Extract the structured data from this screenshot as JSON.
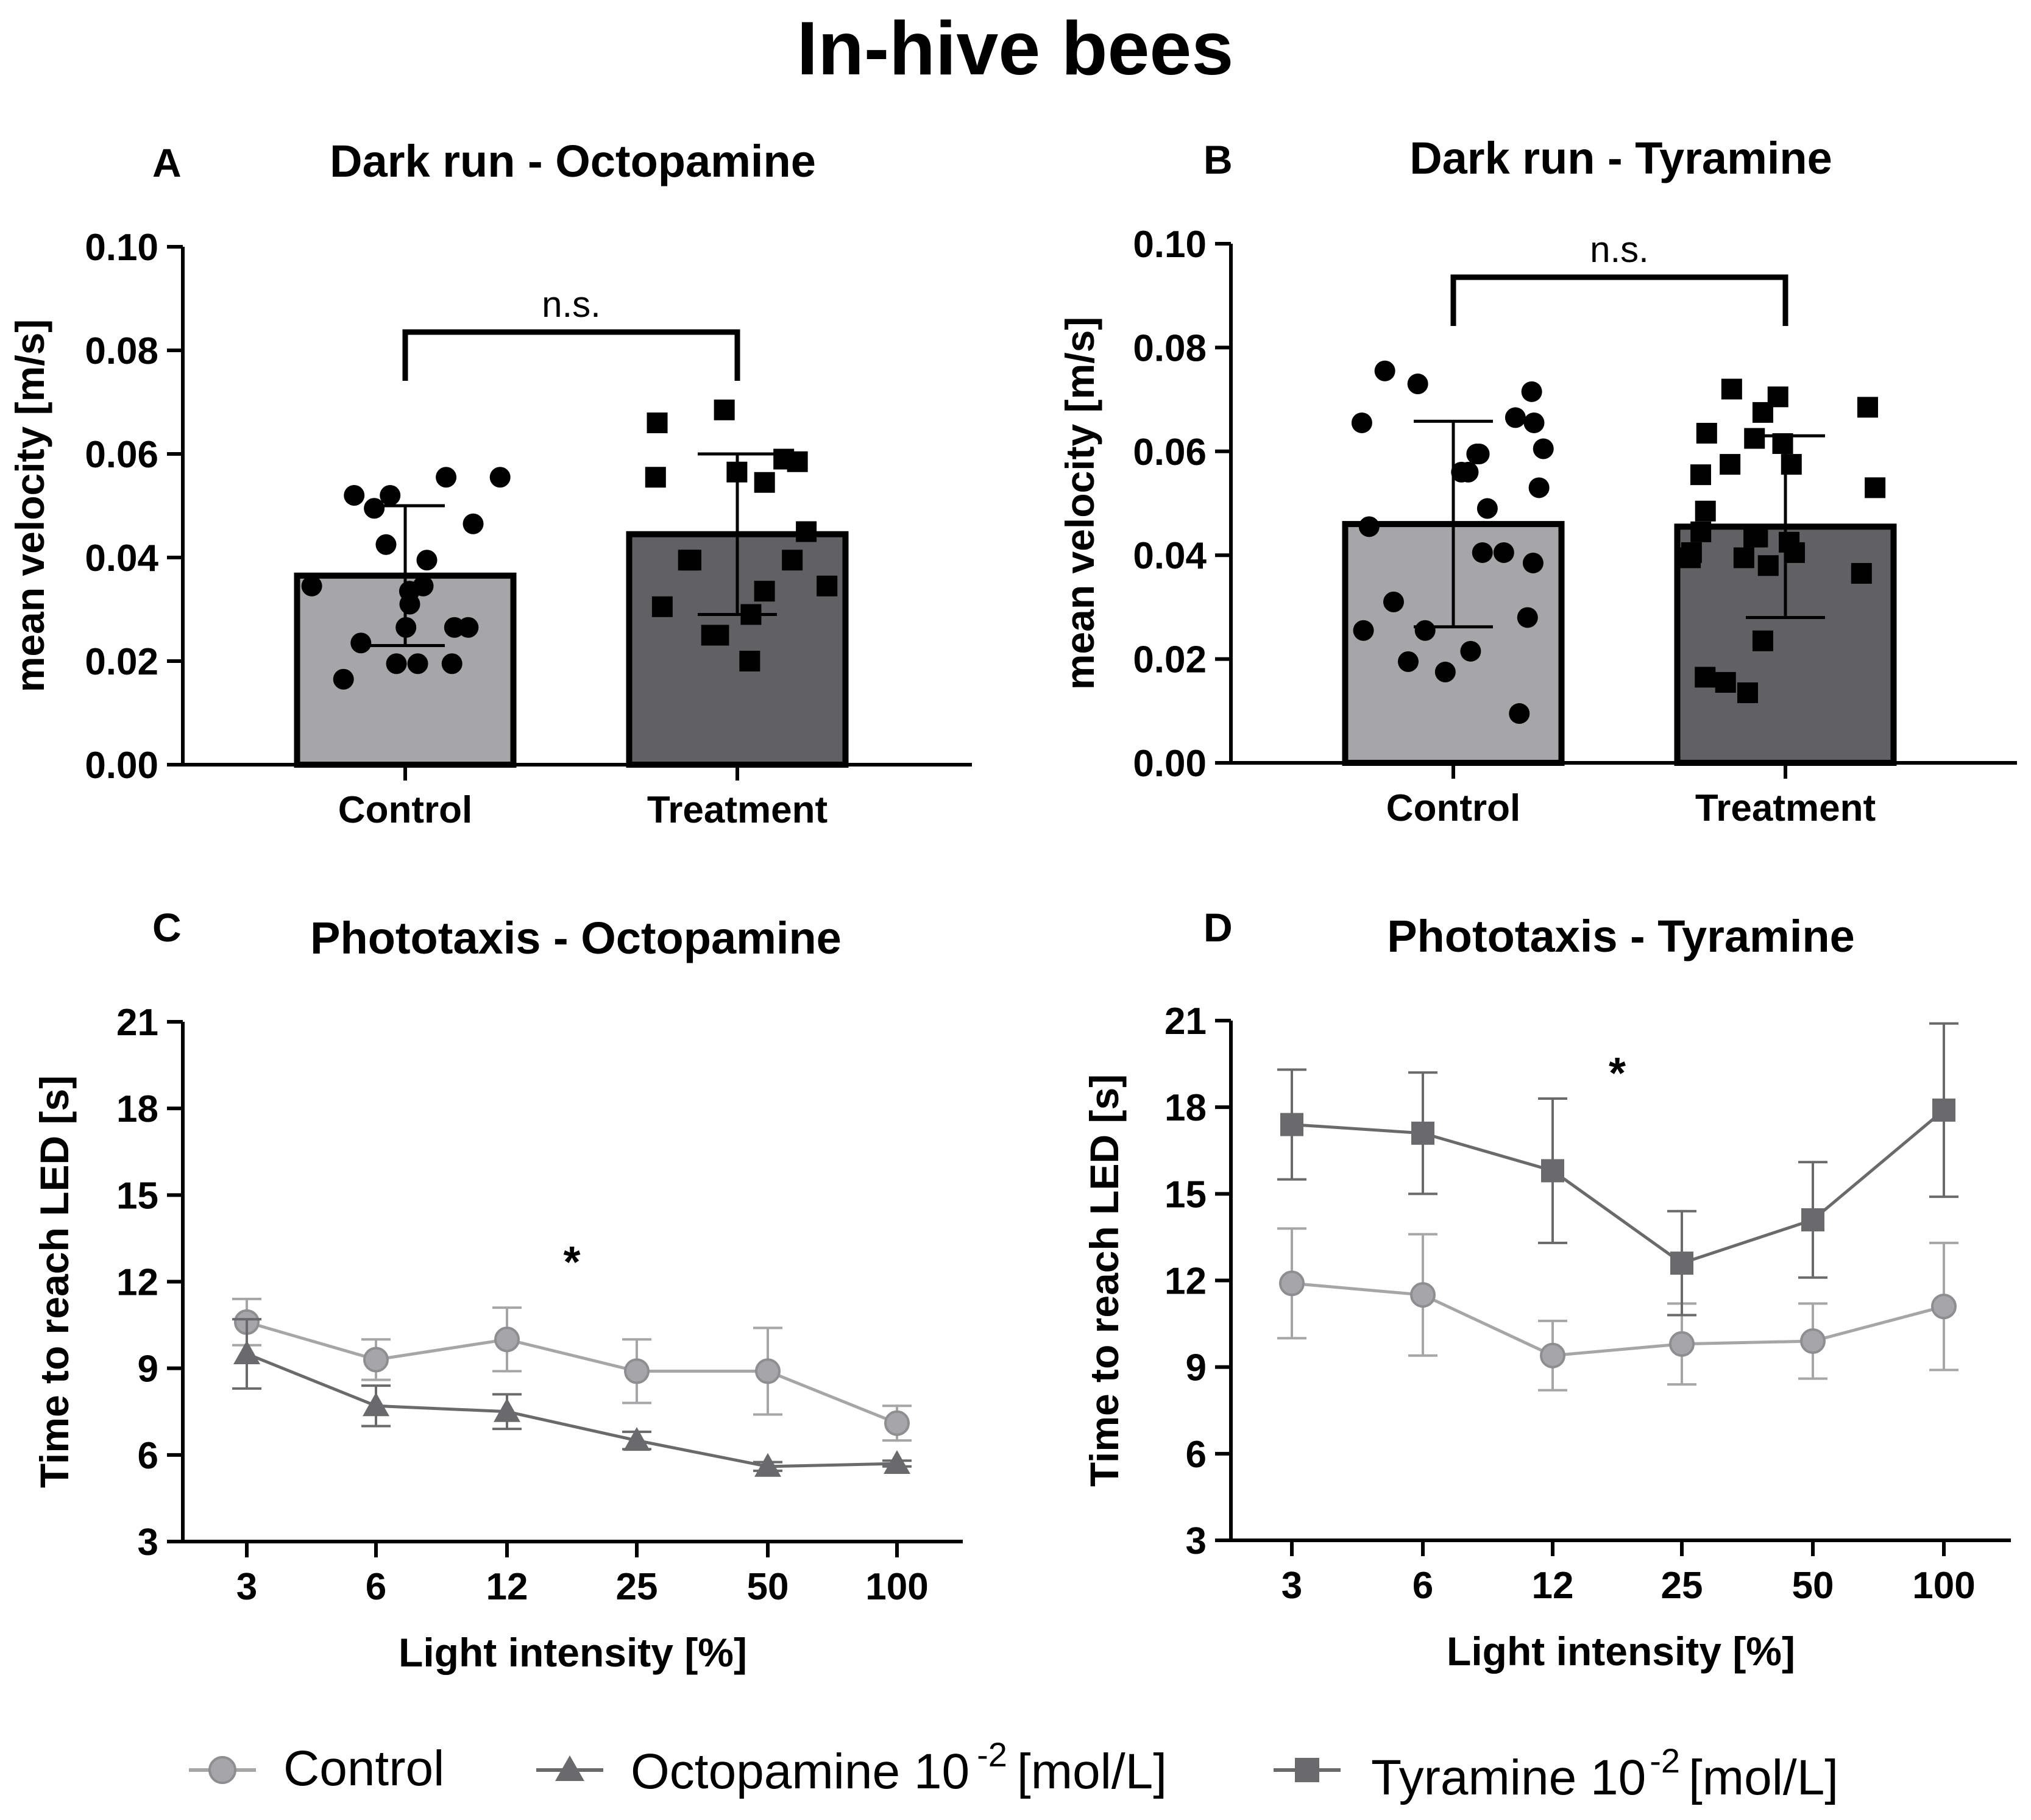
{
  "figure": {
    "title": "In-hive bees",
    "legend": [
      {
        "label": "Control",
        "marker": "circle",
        "color": "#a6a6a8"
      },
      {
        "label": "Octopamine 10",
        "sup": "-2",
        "unit": "[mol/L]",
        "marker": "triangle",
        "color": "#6a6a6c"
      },
      {
        "label": "Tyramine 10",
        "sup": "-2",
        "unit": "[mol/L]",
        "marker": "square",
        "color": "#6a6a6c"
      }
    ]
  },
  "colors": {
    "control": "#a6a6a8",
    "treatment_bar": "#616163",
    "line_dark": "#6a6a6c",
    "axis": "#000000"
  },
  "chart_data": [
    {
      "panel": "A",
      "type": "bar",
      "title": "Dark run - Octopamine",
      "ylabel": "mean velocity [m/s]",
      "xlabel": "",
      "categories": [
        "Control",
        "Treatment"
      ],
      "values": [
        0.0365,
        0.0445
      ],
      "error_sd": [
        0.0135,
        0.0155
      ],
      "ylim": [
        0,
        0.1
      ],
      "yticks": [
        "0.00",
        "0.02",
        "0.04",
        "0.06",
        "0.08",
        "0.10"
      ],
      "annotation": "n.s.",
      "points": {
        "Control": [
          0.0165,
          0.0195,
          0.0195,
          0.0195,
          0.0235,
          0.0265,
          0.0265,
          0.0265,
          0.031,
          0.0335,
          0.0345,
          0.0345,
          0.0395,
          0.0425,
          0.0465,
          0.0495,
          0.052,
          0.052,
          0.0555,
          0.0555
        ],
        "Treatment": [
          0.02,
          0.025,
          0.025,
          0.029,
          0.0305,
          0.0335,
          0.0345,
          0.0395,
          0.0395,
          0.0395,
          0.045,
          0.0545,
          0.0555,
          0.0565,
          0.0585,
          0.059,
          0.066,
          0.0685
        ]
      }
    },
    {
      "panel": "B",
      "type": "bar",
      "title": "Dark run - Tyramine",
      "ylabel": "mean velocity [m/s]",
      "xlabel": "",
      "categories": [
        "Control",
        "Treatment"
      ],
      "values": [
        0.046,
        0.0455
      ],
      "error_sd": [
        0.0198,
        0.0175
      ],
      "ylim": [
        0,
        0.1
      ],
      "yticks": [
        "0.00",
        "0.02",
        "0.04",
        "0.06",
        "0.08",
        "0.10"
      ],
      "annotation": "n.s.",
      "points": {
        "Control": [
          0.0095,
          0.0175,
          0.0195,
          0.0215,
          0.0255,
          0.0255,
          0.028,
          0.031,
          0.0385,
          0.0405,
          0.0405,
          0.0455,
          0.049,
          0.053,
          0.056,
          0.056,
          0.0595,
          0.0595,
          0.0605,
          0.0655,
          0.0655,
          0.0665,
          0.0715,
          0.073,
          0.0755
        ],
        "Treatment": [
          0.0135,
          0.0155,
          0.0165,
          0.0235,
          0.0365,
          0.038,
          0.0395,
          0.0395,
          0.0405,
          0.0405,
          0.0425,
          0.0435,
          0.0435,
          0.0445,
          0.0485,
          0.053,
          0.0555,
          0.0575,
          0.0575,
          0.0615,
          0.0625,
          0.0635,
          0.0675,
          0.0685,
          0.0705,
          0.072
        ]
      }
    },
    {
      "panel": "C",
      "type": "line",
      "title": "Phototaxis - Octopamine",
      "xlabel": "Light intensity [%]",
      "ylabel": "Time to reach LED [s]",
      "x": [
        "3",
        "6",
        "12",
        "25",
        "50",
        "100"
      ],
      "ylim": [
        3,
        21
      ],
      "yticks": [
        "3",
        "6",
        "9",
        "12",
        "15",
        "18",
        "21"
      ],
      "annotation": {
        "text": "*",
        "x": 13.5,
        "y": 13.0
      },
      "series": [
        {
          "name": "Control",
          "marker": "circle",
          "values": [
            10.6,
            9.3,
            10.0,
            8.9,
            8.9,
            7.1
          ],
          "err": [
            0.8,
            0.7,
            1.1,
            1.1,
            1.5,
            0.6
          ]
        },
        {
          "name": "Octopamine 10-2 [mol/L]",
          "marker": "triangle",
          "values": [
            9.5,
            7.7,
            7.5,
            6.5,
            5.6,
            5.7
          ],
          "err": [
            1.2,
            0.7,
            0.6,
            0.3,
            0.15,
            0.1
          ]
        }
      ]
    },
    {
      "panel": "D",
      "type": "line",
      "title": "Phototaxis - Tyramine",
      "xlabel": "Light intensity [%]",
      "ylabel": "Time to reach LED [s]",
      "x": [
        "3",
        "6",
        "12",
        "25",
        "50",
        "100"
      ],
      "ylim": [
        3,
        21
      ],
      "yticks": [
        "3",
        "6",
        "9",
        "12",
        "15",
        "18",
        "21"
      ],
      "annotation": {
        "text": "*",
        "x": 15.5,
        "y": 19.5
      },
      "series": [
        {
          "name": "Control",
          "marker": "circle",
          "values": [
            11.9,
            11.5,
            9.4,
            9.8,
            9.9,
            11.1
          ],
          "err": [
            1.9,
            2.1,
            1.2,
            1.4,
            1.3,
            2.2
          ]
        },
        {
          "name": "Tyramine 10-2 [mol/L]",
          "marker": "square",
          "values": [
            17.4,
            17.1,
            15.8,
            12.6,
            14.1,
            17.9
          ],
          "err": [
            1.9,
            2.1,
            2.5,
            1.8,
            2.0,
            3.0
          ]
        }
      ]
    }
  ]
}
